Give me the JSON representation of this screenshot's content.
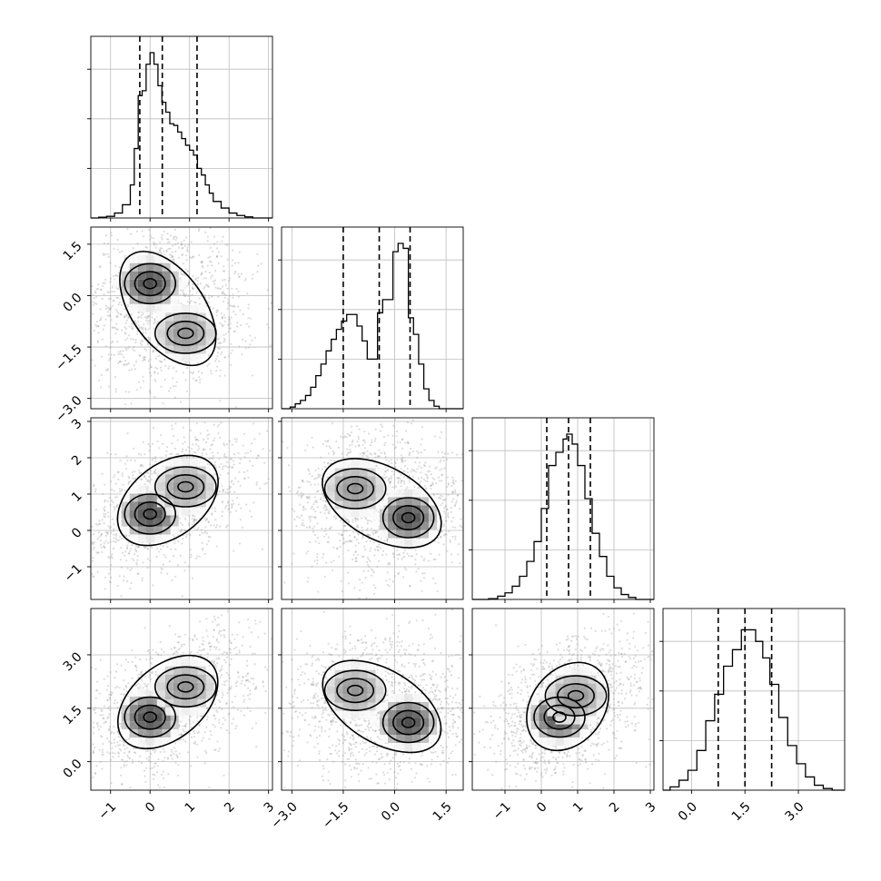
{
  "chart_data": {
    "type": "corner",
    "title": "",
    "parameters": [
      {
        "range": [
          -1.5,
          3.1
        ],
        "ticks": [
          -1,
          0,
          1,
          2,
          3
        ],
        "tick_labels": [
          "−1",
          "0",
          "1",
          "2",
          "3"
        ],
        "quantiles": [
          -0.26,
          0.31,
          1.19
        ]
      },
      {
        "range": [
          -3.3,
          2.0
        ],
        "ticks": [
          -3.0,
          -1.5,
          0.0,
          1.5
        ],
        "tick_labels": [
          "−3.0",
          "−1.5",
          "0.0",
          "1.5"
        ],
        "quantiles": [
          -1.5,
          -0.45,
          0.45
        ]
      },
      {
        "range": [
          -1.9,
          3.1
        ],
        "ticks": [
          -1,
          0,
          1,
          2,
          3
        ],
        "tick_labels": [
          "−1",
          "0",
          "1",
          "2",
          "3"
        ],
        "quantiles": [
          0.15,
          0.75,
          1.35
        ]
      },
      {
        "range": [
          -0.8,
          4.3
        ],
        "ticks": [
          0.0,
          1.5,
          3.0
        ],
        "tick_labels": [
          "0.0",
          "1.5",
          "3.0"
        ],
        "quantiles": [
          0.75,
          1.5,
          2.25
        ]
      }
    ],
    "histograms": [
      {
        "bins": [
          [
            -1.5,
            -1.3,
            0.0
          ],
          [
            -1.3,
            -1.1,
            0.005
          ],
          [
            -1.1,
            -0.9,
            0.01
          ],
          [
            -0.9,
            -0.7,
            0.03
          ],
          [
            -0.7,
            -0.5,
            0.08
          ],
          [
            -0.5,
            -0.4,
            0.2
          ],
          [
            -0.4,
            -0.3,
            0.42
          ],
          [
            -0.3,
            -0.2,
            0.74
          ],
          [
            -0.2,
            -0.1,
            0.77
          ],
          [
            -0.1,
            0.0,
            0.93
          ],
          [
            0.0,
            0.1,
            1.0
          ],
          [
            0.1,
            0.2,
            0.93
          ],
          [
            0.2,
            0.3,
            0.8
          ],
          [
            0.3,
            0.4,
            0.7
          ],
          [
            0.4,
            0.5,
            0.64
          ],
          [
            0.5,
            0.6,
            0.57
          ],
          [
            0.6,
            0.7,
            0.56
          ],
          [
            0.7,
            0.8,
            0.52
          ],
          [
            0.8,
            0.9,
            0.48
          ],
          [
            0.9,
            1.0,
            0.44
          ],
          [
            1.0,
            1.1,
            0.41
          ],
          [
            1.1,
            1.2,
            0.38
          ],
          [
            1.2,
            1.3,
            0.3
          ],
          [
            1.3,
            1.4,
            0.26
          ],
          [
            1.4,
            1.5,
            0.2
          ],
          [
            1.5,
            1.6,
            0.15
          ],
          [
            1.6,
            1.8,
            0.1
          ],
          [
            1.8,
            2.0,
            0.06
          ],
          [
            2.0,
            2.2,
            0.03
          ],
          [
            2.2,
            2.4,
            0.015
          ],
          [
            2.4,
            2.6,
            0.007
          ],
          [
            2.6,
            3.1,
            0.0
          ]
        ]
      },
      {
        "bins": [
          [
            -3.3,
            -3.05,
            0.0
          ],
          [
            -3.05,
            -2.9,
            0.01
          ],
          [
            -2.9,
            -2.75,
            0.03
          ],
          [
            -2.75,
            -2.6,
            0.05
          ],
          [
            -2.6,
            -2.45,
            0.08
          ],
          [
            -2.45,
            -2.3,
            0.13
          ],
          [
            -2.3,
            -2.15,
            0.2
          ],
          [
            -2.15,
            -2.0,
            0.27
          ],
          [
            -2.0,
            -1.85,
            0.35
          ],
          [
            -1.85,
            -1.7,
            0.42
          ],
          [
            -1.7,
            -1.55,
            0.48
          ],
          [
            -1.55,
            -1.4,
            0.53
          ],
          [
            -1.4,
            -1.25,
            0.57
          ],
          [
            -1.25,
            -1.1,
            0.57
          ],
          [
            -1.1,
            -0.95,
            0.5
          ],
          [
            -0.95,
            -0.8,
            0.41
          ],
          [
            -0.8,
            -0.65,
            0.3
          ],
          [
            -0.65,
            -0.5,
            0.3
          ],
          [
            -0.5,
            -0.35,
            0.58
          ],
          [
            -0.35,
            -0.2,
            0.66
          ],
          [
            -0.2,
            -0.05,
            0.66
          ],
          [
            -0.05,
            0.1,
            0.95
          ],
          [
            0.1,
            0.25,
            1.0
          ],
          [
            0.25,
            0.4,
            0.97
          ],
          [
            0.4,
            0.55,
            0.55
          ],
          [
            0.55,
            0.7,
            0.45
          ],
          [
            0.7,
            0.85,
            0.27
          ],
          [
            0.85,
            1.0,
            0.12
          ],
          [
            1.0,
            1.15,
            0.05
          ],
          [
            1.15,
            1.3,
            0.015
          ],
          [
            1.3,
            2.0,
            0.0
          ]
        ]
      },
      {
        "bins": [
          [
            -1.9,
            -1.45,
            0.0
          ],
          [
            -1.45,
            -1.2,
            0.005
          ],
          [
            -1.2,
            -1.0,
            0.02
          ],
          [
            -1.0,
            -0.8,
            0.04
          ],
          [
            -0.8,
            -0.6,
            0.08
          ],
          [
            -0.6,
            -0.4,
            0.14
          ],
          [
            -0.4,
            -0.2,
            0.23
          ],
          [
            -0.2,
            0.0,
            0.35
          ],
          [
            0.0,
            0.2,
            0.55
          ],
          [
            0.2,
            0.4,
            0.81
          ],
          [
            0.4,
            0.6,
            0.89
          ],
          [
            0.6,
            0.7,
            0.97
          ],
          [
            0.7,
            0.85,
            1.0
          ],
          [
            0.85,
            1.0,
            0.94
          ],
          [
            1.0,
            1.2,
            0.81
          ],
          [
            1.2,
            1.4,
            0.61
          ],
          [
            1.4,
            1.6,
            0.4
          ],
          [
            1.6,
            1.8,
            0.26
          ],
          [
            1.8,
            2.0,
            0.14
          ],
          [
            2.0,
            2.2,
            0.07
          ],
          [
            2.2,
            2.4,
            0.03
          ],
          [
            2.4,
            2.6,
            0.012
          ],
          [
            2.6,
            3.1,
            0.0
          ]
        ]
      },
      {
        "bins": [
          [
            -0.8,
            -0.6,
            0.0
          ],
          [
            -0.6,
            -0.35,
            0.02
          ],
          [
            -0.35,
            -0.1,
            0.06
          ],
          [
            -0.1,
            0.15,
            0.12
          ],
          [
            0.15,
            0.4,
            0.24
          ],
          [
            0.4,
            0.65,
            0.42
          ],
          [
            0.65,
            0.9,
            0.58
          ],
          [
            0.9,
            1.15,
            0.75
          ],
          [
            1.15,
            1.4,
            0.85
          ],
          [
            1.4,
            1.6,
            0.97
          ],
          [
            1.6,
            1.8,
            0.97
          ],
          [
            1.8,
            2.0,
            0.9
          ],
          [
            2.0,
            2.2,
            0.8
          ],
          [
            2.2,
            2.45,
            0.64
          ],
          [
            2.45,
            2.7,
            0.44
          ],
          [
            2.7,
            2.95,
            0.27
          ],
          [
            2.95,
            3.2,
            0.16
          ],
          [
            3.2,
            3.45,
            0.08
          ],
          [
            3.45,
            3.7,
            0.03
          ],
          [
            3.7,
            3.95,
            0.01
          ],
          [
            3.95,
            4.3,
            0.0
          ]
        ]
      }
    ],
    "joint_modes": {
      "x0": [
        [
          0.0,
          0.0,
          0.0,
          1.3,
          0.55
        ],
        [
          0.9,
          1.0,
          -1.15,
          2.3,
          0.45
        ]
      ],
      "x1": [
        [
          0.4,
          -0.1,
          0.25,
          1.15,
          0.5
        ],
        [
          -1.15,
          0.8,
          1.2,
          2.2,
          0.5
        ]
      ]
    }
  }
}
